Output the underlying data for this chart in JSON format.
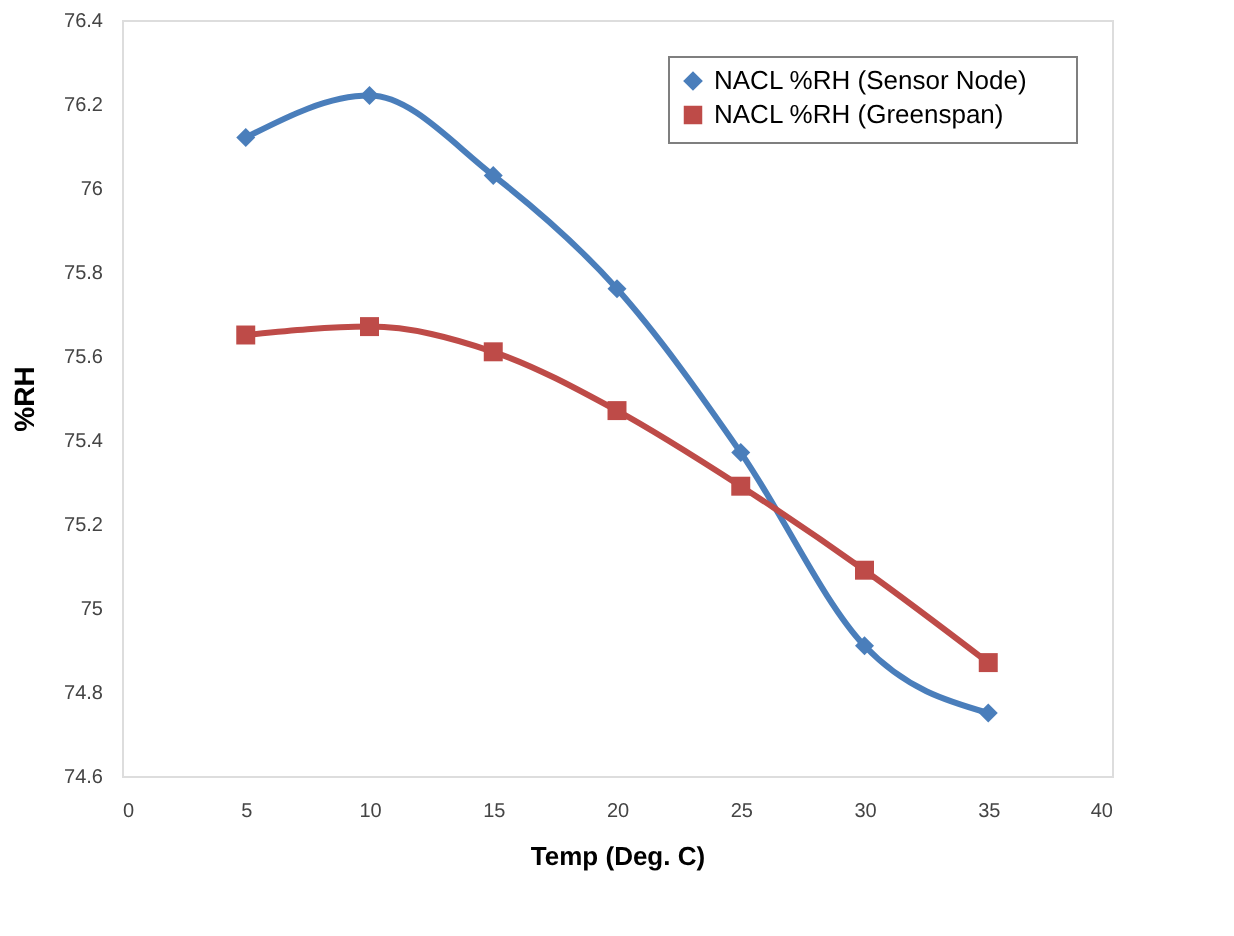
{
  "chart_data": {
    "type": "line",
    "xlabel": "Temp (Deg. C)",
    "ylabel": "%RH",
    "x": [
      5,
      10,
      15,
      20,
      25,
      30,
      35
    ],
    "series": [
      {
        "name": "NACL %RH      (Sensor Node)",
        "color": "#4a7ebb",
        "marker": "diamond",
        "values": [
          76.12,
          76.22,
          76.03,
          75.76,
          75.37,
          74.91,
          74.75
        ]
      },
      {
        "name": "NACL %RH      (Greenspan)",
        "color": "#be4b48",
        "marker": "square",
        "values": [
          75.65,
          75.67,
          75.61,
          75.47,
          75.29,
          75.09,
          74.87
        ]
      }
    ],
    "xlim": [
      0,
      40
    ],
    "xticks": [
      0,
      5,
      10,
      15,
      20,
      25,
      30,
      35,
      40
    ],
    "ylim": [
      74.6,
      76.4
    ],
    "yticks": [
      74.6,
      74.8,
      75,
      75.2,
      75.4,
      75.6,
      75.8,
      76,
      76.2,
      76.4
    ],
    "grid": false,
    "legend": "top right",
    "line_style": "solid"
  }
}
